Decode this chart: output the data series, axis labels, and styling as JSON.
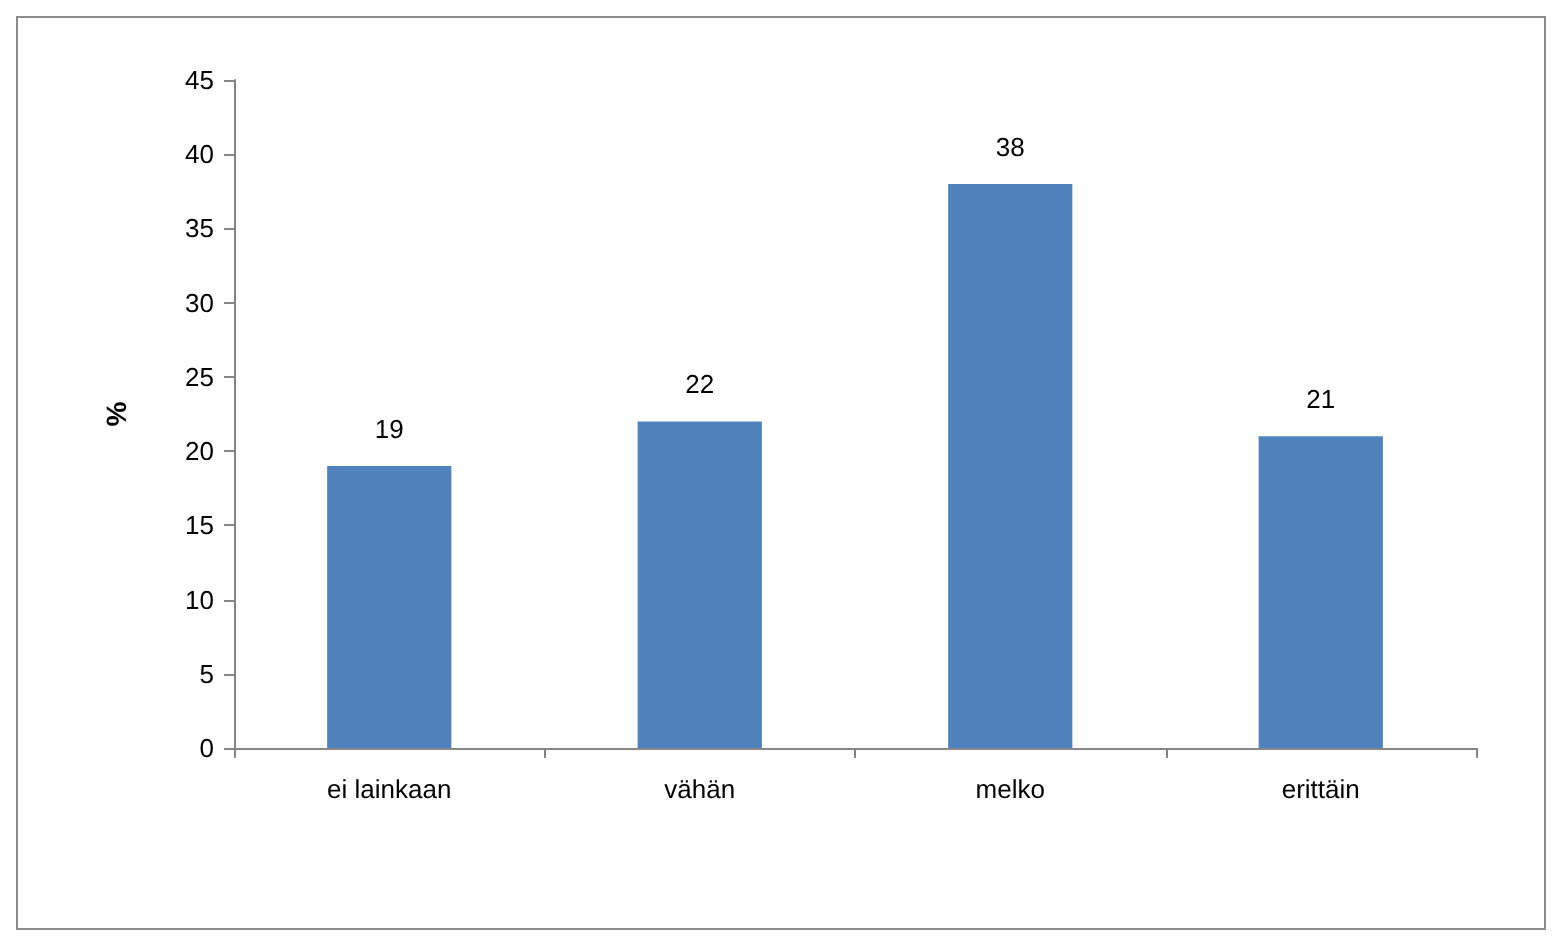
{
  "chart_data": {
    "type": "bar",
    "ylabel": "%",
    "categories": [
      "ei lainkaan",
      "vähän",
      "melko",
      "erittäin"
    ],
    "values": [
      19,
      22,
      38,
      21
    ],
    "color": "#4f81bd",
    "ylim": [
      0,
      45
    ],
    "yticks": [
      0,
      5,
      10,
      15,
      20,
      25,
      30,
      35,
      40,
      45
    ],
    "data_labels": true,
    "grid": false
  }
}
